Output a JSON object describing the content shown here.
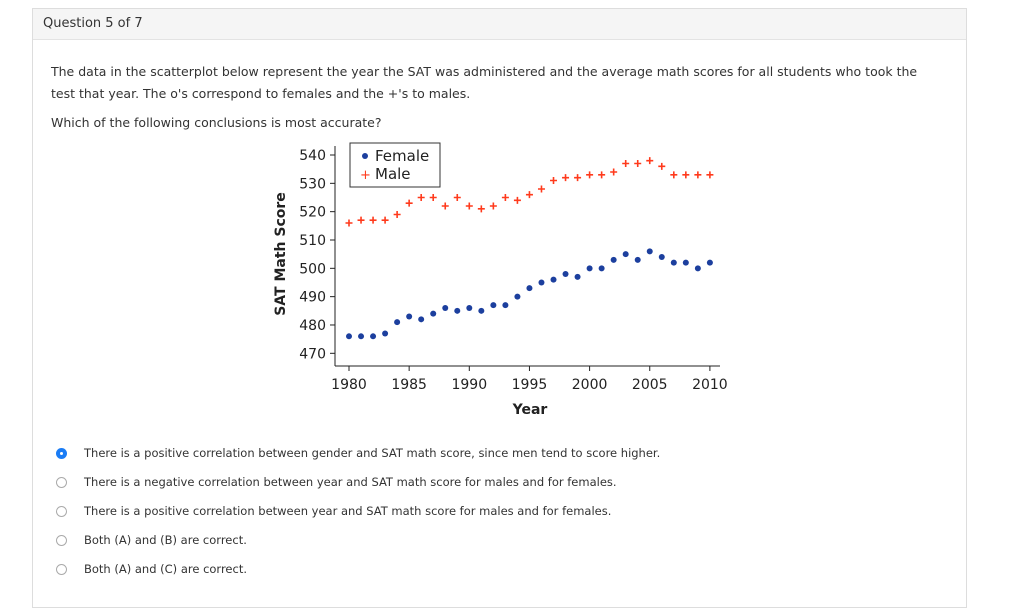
{
  "header": {
    "title": "Question 5 of 7"
  },
  "question": {
    "text": "The data in the scatterplot below represent the year the SAT was administered and the average math scores for all students who took the test that year. The o's correspond to females and the +'s to males.",
    "prompt": "Which of the following conclusions is most accurate?"
  },
  "options": [
    {
      "label": "There is a positive correlation between gender and SAT math score, since men tend to score higher.",
      "selected": true
    },
    {
      "label": "There is a negative correlation between year and SAT math score for males and for females.",
      "selected": false
    },
    {
      "label": "There is a positive correlation between year and SAT math score for males and for females.",
      "selected": false
    },
    {
      "label": "Both (A) and (B) are correct.",
      "selected": false
    },
    {
      "label": "Both (A) and (C) are correct.",
      "selected": false
    }
  ],
  "chart_data": {
    "type": "scatter",
    "xlabel": "Year",
    "ylabel": "SAT Math Score",
    "xlim": [
      1980,
      2010
    ],
    "ylim": [
      470,
      540
    ],
    "xticks": [
      "1980",
      "1985",
      "1990",
      "1995",
      "2000",
      "2005",
      "2010"
    ],
    "yticks": [
      "470",
      "480",
      "490",
      "500",
      "510",
      "520",
      "530",
      "540"
    ],
    "legend_position": "top-left",
    "x": [
      1980,
      1981,
      1982,
      1983,
      1984,
      1985,
      1986,
      1987,
      1988,
      1989,
      1990,
      1991,
      1992,
      1993,
      1994,
      1995,
      1996,
      1997,
      1998,
      1999,
      2000,
      2001,
      2002,
      2003,
      2004,
      2005,
      2006,
      2007,
      2008,
      2009,
      2010
    ],
    "series": [
      {
        "name": "Female",
        "marker": "circle",
        "color": "#1c3f9e",
        "values": [
          476,
          476,
          476,
          477,
          481,
          483,
          482,
          484,
          486,
          485,
          486,
          485,
          487,
          487,
          490,
          493,
          495,
          496,
          498,
          497,
          500,
          500,
          503,
          505,
          503,
          506,
          504,
          502,
          502,
          500,
          502
        ]
      },
      {
        "name": "Male",
        "marker": "plus",
        "color": "#ff3a1c",
        "values": [
          516,
          517,
          517,
          517,
          519,
          523,
          525,
          525,
          522,
          525,
          522,
          521,
          522,
          525,
          524,
          526,
          528,
          531,
          532,
          532,
          533,
          533,
          534,
          537,
          537,
          538,
          536,
          533,
          533,
          533,
          533
        ]
      }
    ]
  }
}
